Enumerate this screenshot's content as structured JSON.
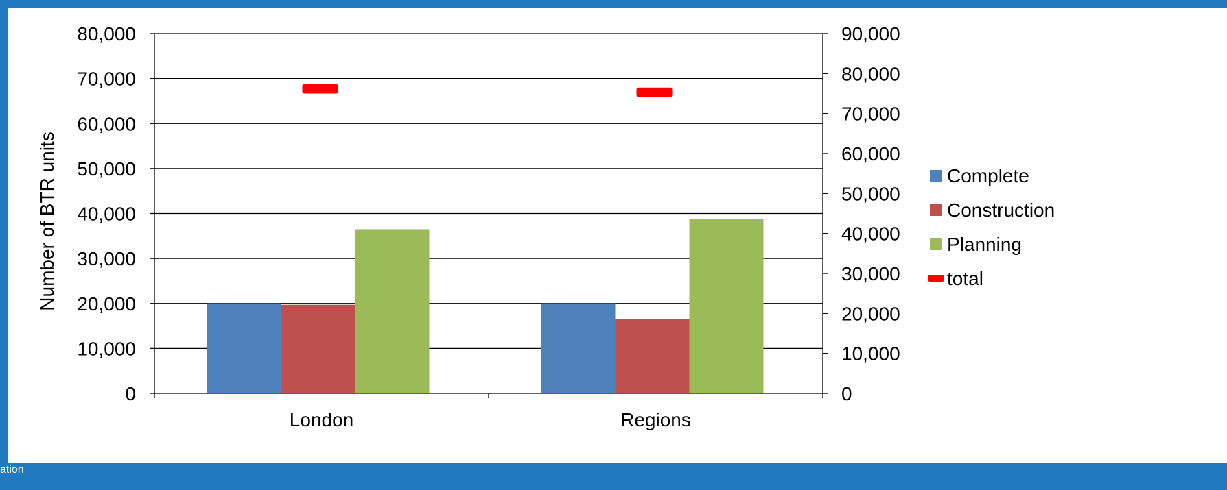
{
  "footer": {
    "text": "ation"
  },
  "chart_data": {
    "type": "bar",
    "title": "",
    "xlabel": "",
    "ylabel": "Number of BTR units",
    "categories": [
      "London",
      "Regions"
    ],
    "ylim": [
      0,
      80000
    ],
    "y_ticks": [
      "0",
      "10,000",
      "20,000",
      "30,000",
      "40,000",
      "50,000",
      "60,000",
      "70,000",
      "80,000"
    ],
    "y2lim": [
      0,
      90000
    ],
    "y2_ticks": [
      "0",
      "10,000",
      "20,000",
      "30,000",
      "40,000",
      "50,000",
      "60,000",
      "70,000",
      "80,000",
      "90,000"
    ],
    "grid": true,
    "legend_position": "right",
    "series": [
      {
        "name": "Complete",
        "type": "bar",
        "axis": "left",
        "color": "#4f81bd",
        "values": [
          20000,
          20000
        ]
      },
      {
        "name": "Construction",
        "type": "bar",
        "axis": "left",
        "color": "#c0504d",
        "values": [
          19700,
          16500
        ]
      },
      {
        "name": "Planning",
        "type": "bar",
        "axis": "left",
        "color": "#9bbb59",
        "values": [
          36500,
          38800
        ]
      },
      {
        "name": "total",
        "type": "marker",
        "axis": "right",
        "color": "#ff0000",
        "values": [
          76200,
          75300
        ]
      }
    ]
  }
}
